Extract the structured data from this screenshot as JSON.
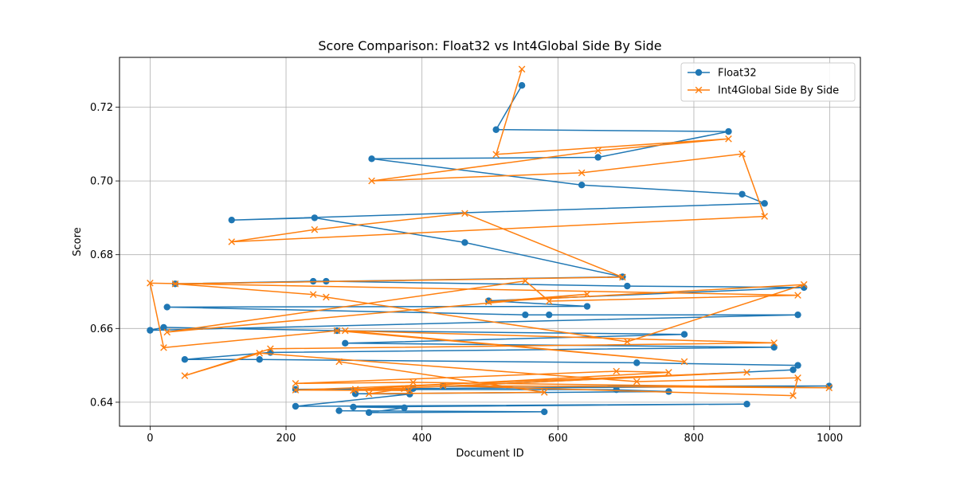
{
  "chart_data": {
    "type": "line",
    "title": "Score Comparison: Float32 vs Int4Global Side By Side",
    "xlabel": "Document ID",
    "ylabel": "Score",
    "xlim": [
      -45,
      1045
    ],
    "ylim": [
      0.6335,
      0.7335
    ],
    "xticks": [
      0,
      200,
      400,
      600,
      800,
      1000
    ],
    "yticks": [
      0.64,
      0.66,
      0.68,
      0.7,
      0.72
    ],
    "ytick_labels": [
      "0.64",
      "0.66",
      "0.68",
      "0.70",
      "0.72"
    ],
    "grid": true,
    "legend_position": "upper right",
    "series": [
      {
        "name": "Float32",
        "color": "#1f77b4",
        "marker": "circle",
        "x": [
          547,
          509,
          851,
          659,
          326,
          635,
          871,
          904,
          120,
          242,
          463,
          695,
          37,
          240,
          259,
          702,
          962,
          498,
          643,
          25,
          552,
          587,
          953,
          0,
          20,
          275,
          786,
          287,
          918,
          177,
          51,
          161,
          716,
          953,
          946,
          431,
          999,
          387,
          214,
          686,
          763,
          302,
          382,
          214,
          878,
          299,
          374,
          322,
          580,
          278
        ],
        "y": [
          0.7259,
          0.7139,
          0.7134,
          0.7064,
          0.706,
          0.6989,
          0.6964,
          0.6939,
          0.6894,
          0.69,
          0.6833,
          0.674,
          0.6721,
          0.6728,
          0.6728,
          0.6715,
          0.6711,
          0.6675,
          0.666,
          0.6658,
          0.6637,
          0.6637,
          0.6637,
          0.6595,
          0.6603,
          0.6594,
          0.6584,
          0.656,
          0.6549,
          0.6535,
          0.6516,
          0.6516,
          0.6507,
          0.65,
          0.6488,
          0.6443,
          0.6444,
          0.6437,
          0.6435,
          0.6434,
          0.6429,
          0.6423,
          0.6422,
          0.6389,
          0.6395,
          0.6387,
          0.6385,
          0.6372,
          0.6374,
          0.6377
        ]
      },
      {
        "name": "Int4Global Side By Side",
        "color": "#ff7f0e",
        "marker": "x",
        "x": [
          547,
          509,
          851,
          659,
          326,
          635,
          871,
          904,
          120,
          242,
          463,
          695,
          37,
          240,
          259,
          702,
          962,
          498,
          643,
          25,
          552,
          587,
          953,
          0,
          20,
          275,
          786,
          287,
          918,
          177,
          51,
          161,
          716,
          953,
          946,
          431,
          999,
          387,
          214,
          686,
          763,
          302,
          382,
          214,
          878,
          299,
          374,
          322,
          580,
          278
        ],
        "y": [
          0.7303,
          0.7072,
          0.7114,
          0.7082,
          0.7,
          0.7022,
          0.7073,
          0.6904,
          0.6835,
          0.6868,
          0.6912,
          0.6739,
          0.6721,
          0.6692,
          0.6685,
          0.6564,
          0.6719,
          0.6672,
          0.6693,
          0.659,
          0.6729,
          0.6674,
          0.669,
          0.6723,
          0.6548,
          0.6594,
          0.651,
          0.6594,
          0.6561,
          0.6545,
          0.6472,
          0.6533,
          0.6456,
          0.6466,
          0.6418,
          0.6445,
          0.6439,
          0.6454,
          0.6451,
          0.6484,
          0.6481,
          0.6435,
          0.6432,
          0.6433,
          0.6481,
          0.6432,
          0.6437,
          0.6423,
          0.6427,
          0.651
        ]
      }
    ]
  }
}
